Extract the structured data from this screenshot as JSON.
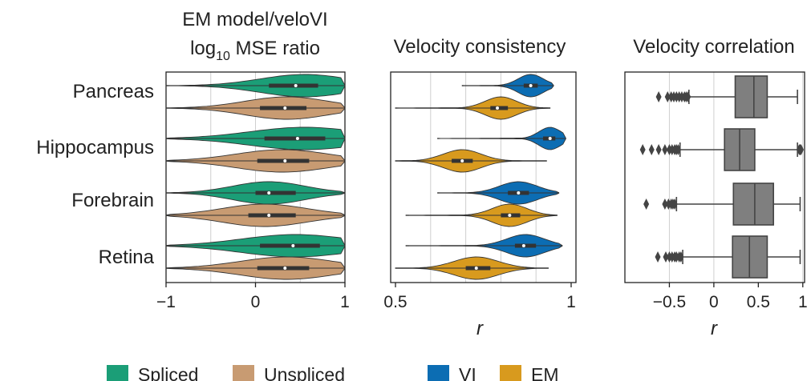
{
  "chart_data": [
    {
      "type": "violin",
      "title_line1": "EM model/veloVI",
      "title_line2_main": "log",
      "title_line2_sub": "10",
      "title_line2_rest": " MSE ratio",
      "categories": [
        "Pancreas",
        "Hippocampus",
        "Forebrain",
        "Retina"
      ],
      "xlim": [
        -1,
        1
      ],
      "xticks": [
        -1,
        0,
        1
      ],
      "xtick_labels": [
        "−1",
        "0",
        "1"
      ],
      "xlabel": "",
      "grid_x": [
        -0.5,
        0,
        0.5
      ],
      "series_names": [
        "Spliced",
        "Unspliced"
      ],
      "groups": [
        {
          "category": "Pancreas",
          "series": [
            {
              "name": "Spliced",
              "min": -1.0,
              "max": 1.0,
              "q1": 0.15,
              "median": 0.45,
              "q3": 0.7,
              "mode": 0.55
            },
            {
              "name": "Unspliced",
              "min": -1.0,
              "max": 1.0,
              "q1": 0.05,
              "median": 0.33,
              "q3": 0.57,
              "mode": 0.35
            }
          ]
        },
        {
          "category": "Hippocampus",
          "series": [
            {
              "name": "Spliced",
              "min": -1.0,
              "max": 1.0,
              "q1": 0.1,
              "median": 0.47,
              "q3": 0.78,
              "mode": 0.55
            },
            {
              "name": "Unspliced",
              "min": -1.0,
              "max": 1.0,
              "q1": 0.02,
              "median": 0.33,
              "q3": 0.6,
              "mode": 0.3
            }
          ]
        },
        {
          "category": "Forebrain",
          "series": [
            {
              "name": "Spliced",
              "min": -1.0,
              "max": 1.0,
              "q1": 0.0,
              "median": 0.15,
              "q3": 0.45,
              "mode": 0.15
            },
            {
              "name": "Unspliced",
              "min": -1.0,
              "max": 1.0,
              "q1": -0.08,
              "median": 0.15,
              "q3": 0.45,
              "mode": 0.1
            }
          ]
        },
        {
          "category": "Retina",
          "series": [
            {
              "name": "Spliced",
              "min": -1.0,
              "max": 1.0,
              "q1": 0.05,
              "median": 0.42,
              "q3": 0.72,
              "mode": 0.45
            },
            {
              "name": "Unspliced",
              "min": -1.0,
              "max": 1.0,
              "q1": 0.02,
              "median": 0.33,
              "q3": 0.6,
              "mode": 0.35
            }
          ]
        }
      ]
    },
    {
      "type": "violin",
      "title": "Velocity consistency",
      "categories": [
        "Pancreas",
        "Hippocampus",
        "Forebrain",
        "Retina"
      ],
      "xlim": [
        0.5,
        1.0
      ],
      "xticks": [
        0.5,
        1
      ],
      "xtick_labels": [
        "0.5",
        "1"
      ],
      "xlabel": "r",
      "grid_x": [
        0.6,
        0.7,
        0.8,
        0.9
      ],
      "series_names": [
        "VI",
        "EM"
      ],
      "groups": [
        {
          "category": "Pancreas",
          "series": [
            {
              "name": "VI",
              "min": 0.69,
              "max": 0.95,
              "q1": 0.865,
              "median": 0.885,
              "q3": 0.905,
              "mode": 0.885
            },
            {
              "name": "EM",
              "min": 0.5,
              "max": 0.94,
              "q1": 0.77,
              "median": 0.79,
              "q3": 0.82,
              "mode": 0.8
            }
          ]
        },
        {
          "category": "Hippocampus",
          "series": [
            {
              "name": "VI",
              "min": 0.62,
              "max": 0.985,
              "q1": 0.92,
              "median": 0.94,
              "q3": 0.955,
              "mode": 0.94
            },
            {
              "name": "EM",
              "min": 0.5,
              "max": 0.93,
              "q1": 0.66,
              "median": 0.69,
              "q3": 0.72,
              "mode": 0.69
            }
          ]
        },
        {
          "category": "Forebrain",
          "series": [
            {
              "name": "VI",
              "min": 0.62,
              "max": 0.965,
              "q1": 0.82,
              "median": 0.85,
              "q3": 0.88,
              "mode": 0.85
            },
            {
              "name": "EM",
              "min": 0.53,
              "max": 0.96,
              "q1": 0.8,
              "median": 0.825,
              "q3": 0.855,
              "mode": 0.825
            }
          ]
        },
        {
          "category": "Retina",
          "series": [
            {
              "name": "VI",
              "min": 0.53,
              "max": 0.975,
              "q1": 0.84,
              "median": 0.865,
              "q3": 0.9,
              "mode": 0.87
            },
            {
              "name": "EM",
              "min": 0.5,
              "max": 0.935,
              "q1": 0.7,
              "median": 0.73,
              "q3": 0.77,
              "mode": 0.73
            }
          ]
        }
      ]
    },
    {
      "type": "box",
      "title": "Velocity correlation",
      "categories": [
        "Pancreas",
        "Hippocampus",
        "Forebrain",
        "Retina"
      ],
      "xlim": [
        -1.0,
        1.02
      ],
      "xticks": [
        -0.5,
        0,
        0.5,
        1
      ],
      "xtick_labels": [
        "−0.5",
        "0",
        "0.5",
        "1"
      ],
      "xlabel": "r",
      "grid_x": [
        -0.5,
        0,
        1
      ],
      "groups": [
        {
          "category": "Pancreas",
          "whisker_low": -0.28,
          "q1": 0.24,
          "median": 0.45,
          "q3": 0.6,
          "whisker_high": 0.94,
          "outliers_low": [
            -0.62,
            -0.52,
            -0.48,
            -0.45,
            -0.42,
            -0.39,
            -0.36,
            -0.33,
            -0.31,
            -0.29
          ],
          "outliers_high": []
        },
        {
          "category": "Hippocampus",
          "whisker_low": -0.38,
          "q1": 0.12,
          "median": 0.29,
          "q3": 0.46,
          "whisker_high": 0.94,
          "outliers_low": [
            -0.8,
            -0.7,
            -0.62,
            -0.55,
            -0.5,
            -0.47,
            -0.44,
            -0.42,
            -0.4
          ],
          "outliers_high": [
            0.96,
            0.97,
            0.98
          ]
        },
        {
          "category": "Forebrain",
          "whisker_low": -0.42,
          "q1": 0.22,
          "median": 0.46,
          "q3": 0.67,
          "whisker_high": 0.97,
          "outliers_low": [
            -0.76,
            -0.55,
            -0.51,
            -0.48,
            -0.46,
            -0.44
          ],
          "outliers_high": []
        },
        {
          "category": "Retina",
          "whisker_low": -0.35,
          "q1": 0.21,
          "median": 0.4,
          "q3": 0.6,
          "whisker_high": 0.97,
          "outliers_low": [
            -0.63,
            -0.54,
            -0.5,
            -0.47,
            -0.44,
            -0.42,
            -0.39,
            -0.37
          ],
          "outliers_high": []
        }
      ]
    }
  ],
  "legend": {
    "items": [
      {
        "label": "Spliced",
        "color": "#1b9e77"
      },
      {
        "label": "Unspliced",
        "color": "#c89b72"
      },
      {
        "label": "VI",
        "color": "#0c6db3"
      },
      {
        "label": "EM",
        "color": "#d89a1e"
      }
    ]
  },
  "colors": {
    "spliced": "#1b9e77",
    "unspliced": "#c89b72",
    "vi": "#0c6db3",
    "em": "#d89a1e",
    "box": "#7f7f7f",
    "grid": "#cfcfcf"
  }
}
